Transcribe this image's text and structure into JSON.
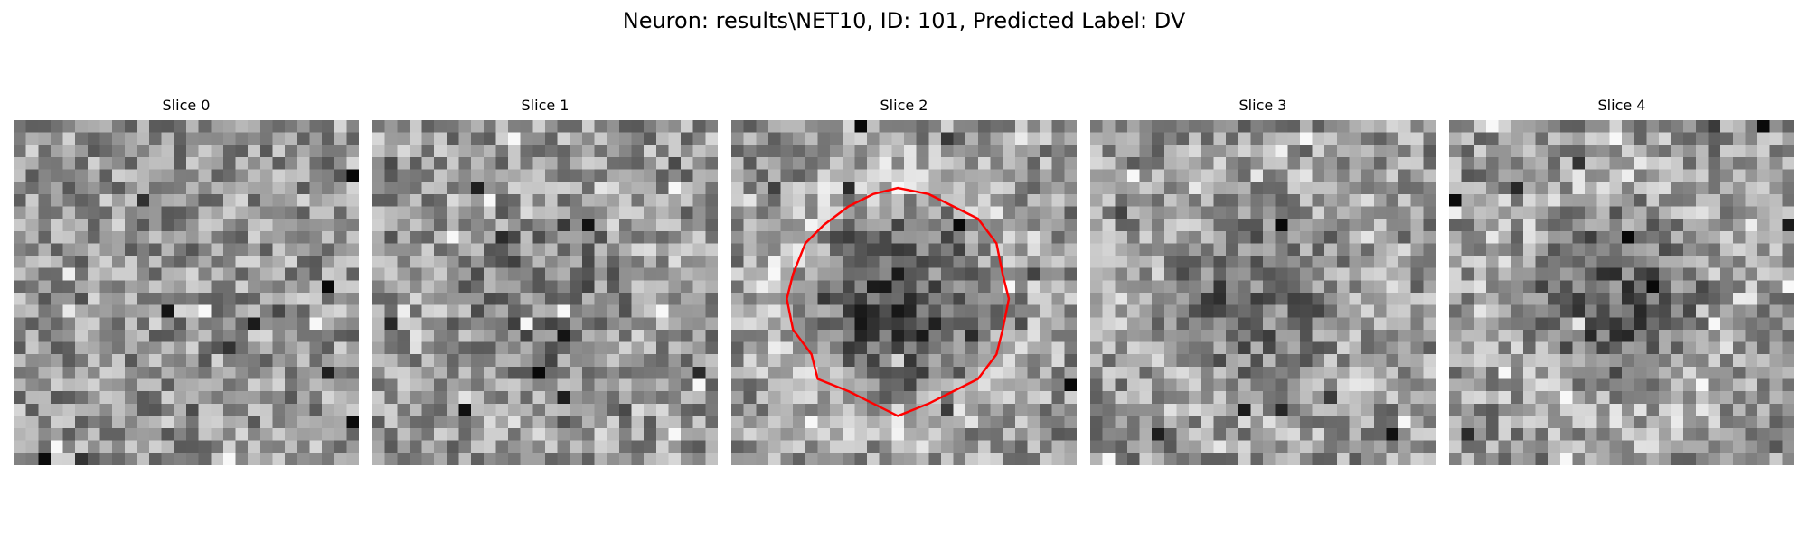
{
  "figure": {
    "title": "Neuron: results\\NET10, ID: 101, Predicted Label: DV",
    "grid_size": 28,
    "panels": [
      {
        "title": "Slice 0",
        "seed": 11,
        "dark_center": 0.0,
        "has_contour": false
      },
      {
        "title": "Slice 1",
        "seed": 23,
        "dark_center": 0.4,
        "has_contour": false
      },
      {
        "title": "Slice 2",
        "seed": 37,
        "dark_center": 1.0,
        "has_contour": true
      },
      {
        "title": "Slice 3",
        "seed": 53,
        "dark_center": 0.5,
        "has_contour": false
      },
      {
        "title": "Slice 4",
        "seed": 71,
        "dark_center": 0.7,
        "has_contour": false
      }
    ]
  },
  "colors": {
    "contour": "#ff0000",
    "background": "#ffffff"
  }
}
